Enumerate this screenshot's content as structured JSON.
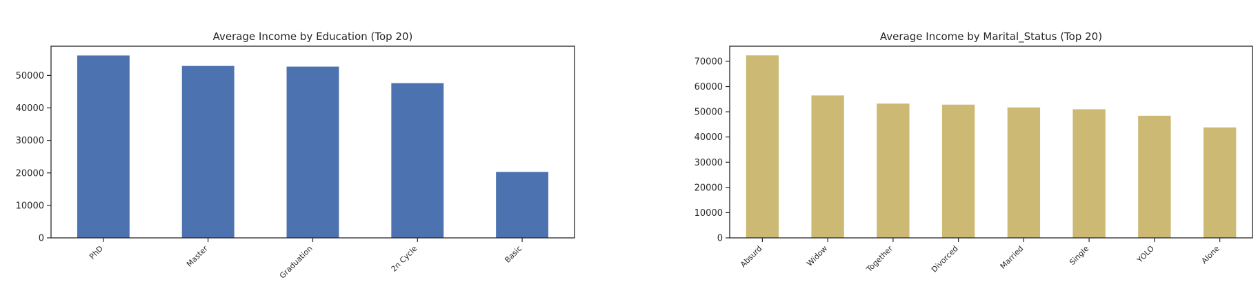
{
  "chart_data": [
    {
      "type": "bar",
      "title": "Average Income by Education (Top 20)",
      "xlabel": "",
      "ylabel": "",
      "categories": [
        "PhD",
        "Master",
        "Graduation",
        "2n Cycle",
        "Basic"
      ],
      "values": [
        56145,
        52918,
        52720,
        47633,
        20306
      ],
      "ylim": [
        0,
        59000
      ],
      "yticks": [
        0,
        10000,
        20000,
        30000,
        40000,
        50000
      ],
      "color": "#4c72b0",
      "grid": false,
      "legend": "none"
    },
    {
      "type": "bar",
      "title": "Average Income by Marital_Status (Top 20)",
      "xlabel": "",
      "ylabel": "",
      "categories": [
        "Absurd",
        "Widow",
        "Together",
        "Divorced",
        "Married",
        "Single",
        "YOLO",
        "Alone"
      ],
      "values": [
        72365,
        56481,
        53245,
        52834,
        51724,
        50995,
        48432,
        43789
      ],
      "ylim": [
        0,
        76000
      ],
      "yticks": [
        0,
        10000,
        20000,
        30000,
        40000,
        50000,
        60000,
        70000
      ],
      "color": "#ccb974",
      "grid": false,
      "legend": "none"
    }
  ]
}
